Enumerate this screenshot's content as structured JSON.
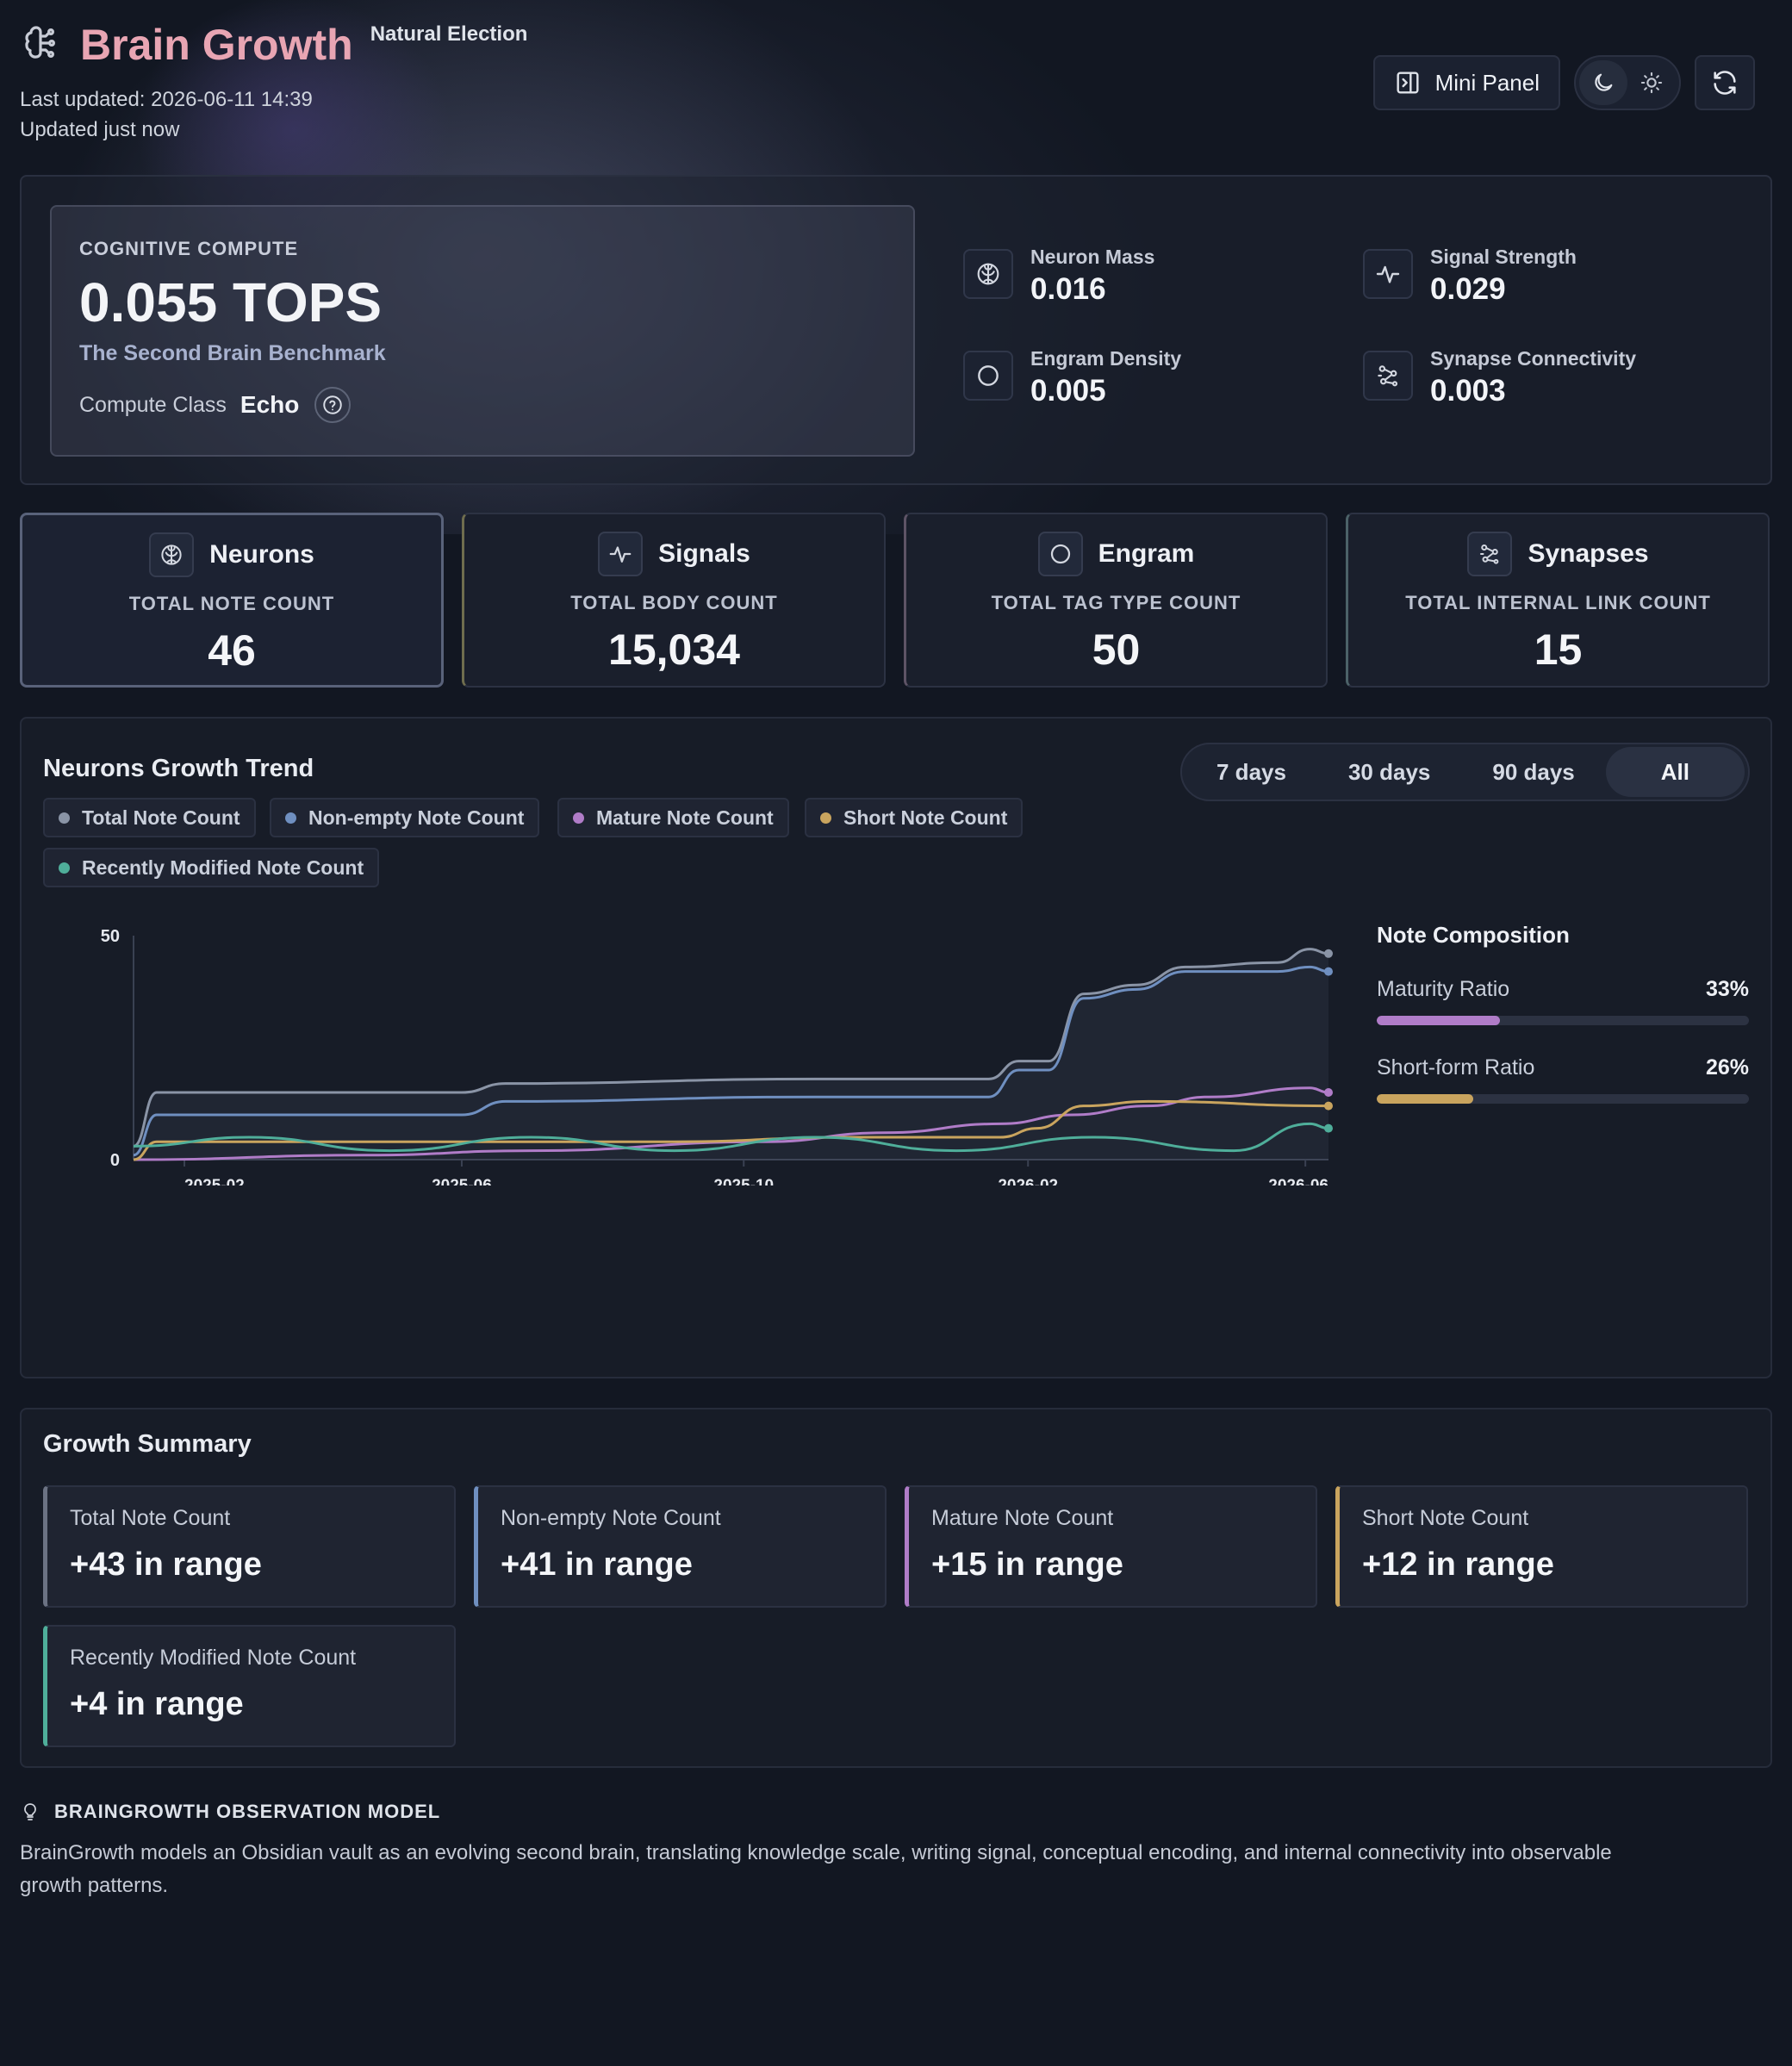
{
  "header": {
    "title": "Brain Growth",
    "subtitle": "Natural Election",
    "last_updated": "Last updated: 2026-06-11 14:39",
    "updated_relative": "Updated just now",
    "mini_panel_label": "Mini Panel",
    "icons": {
      "brand": "brain-icon",
      "mini_panel": "panel-right-icon",
      "dark": "moon-icon",
      "light": "sun-icon",
      "refresh": "refresh-icon"
    }
  },
  "compute": {
    "label": "COGNITIVE COMPUTE",
    "value": "0.055 TOPS",
    "benchmark": "The Second Brain Benchmark",
    "class_label": "Compute Class",
    "class_value": "Echo"
  },
  "metrics": [
    {
      "label": "Neuron Mass",
      "value": "0.016",
      "icon": "brain-icon"
    },
    {
      "label": "Signal Strength",
      "value": "0.029",
      "icon": "pulse-icon"
    },
    {
      "label": "Engram Density",
      "value": "0.005",
      "icon": "circle-icon"
    },
    {
      "label": "Synapse Connectivity",
      "value": "0.003",
      "icon": "network-icon"
    }
  ],
  "stats": [
    {
      "title": "Neurons",
      "subtitle": "TOTAL NOTE COUNT",
      "value": "46",
      "icon": "brain-icon",
      "accent": "#59627a"
    },
    {
      "title": "Signals",
      "subtitle": "TOTAL BODY COUNT",
      "value": "15,034",
      "icon": "pulse-icon",
      "accent": "#6f6d4e"
    },
    {
      "title": "Engram",
      "subtitle": "TOTAL TAG TYPE COUNT",
      "value": "50",
      "icon": "circle-icon",
      "accent": "#5e5466"
    },
    {
      "title": "Synapses",
      "subtitle": "TOTAL INTERNAL LINK COUNT",
      "value": "15",
      "icon": "network-icon",
      "accent": "#4c6268"
    }
  ],
  "trend": {
    "title": "Neurons Growth Trend",
    "ranges": [
      "7 days",
      "30 days",
      "90 days",
      "All"
    ],
    "active_range": "All",
    "legend": [
      {
        "name": "Total Note Count",
        "color": "#8a94a6"
      },
      {
        "name": "Non-empty Note Count",
        "color": "#6f8fc0"
      },
      {
        "name": "Mature Note Count",
        "color": "#b07cc8"
      },
      {
        "name": "Short Note Count",
        "color": "#c9a45e"
      },
      {
        "name": "Recently Modified Note Count",
        "color": "#4fae9a"
      }
    ]
  },
  "chart_data": {
    "type": "line",
    "x_ticks": [
      "2025-02",
      "2025-06",
      "2025-10",
      "2026-02",
      "2026-06"
    ],
    "y_ticks": [
      0,
      50
    ],
    "ylim": [
      0,
      50
    ],
    "xlim": [
      "2025-01-10",
      "2026-06-11"
    ],
    "series": [
      {
        "name": "Total Note Count",
        "color": "#8a94a6",
        "points": [
          [
            "2025-01-10",
            3
          ],
          [
            "2025-01-20",
            15
          ],
          [
            "2025-06-01",
            15
          ],
          [
            "2025-06-20",
            17
          ],
          [
            "2025-11-01",
            18
          ],
          [
            "2026-01-15",
            18
          ],
          [
            "2026-01-28",
            22
          ],
          [
            "2026-02-10",
            22
          ],
          [
            "2026-02-25",
            37
          ],
          [
            "2026-03-20",
            39
          ],
          [
            "2026-04-10",
            43
          ],
          [
            "2026-05-20",
            44
          ],
          [
            "2026-06-03",
            47
          ],
          [
            "2026-06-11",
            46
          ]
        ]
      },
      {
        "name": "Non-empty Note Count",
        "color": "#6f8fc0",
        "points": [
          [
            "2025-01-10",
            1
          ],
          [
            "2025-01-20",
            10
          ],
          [
            "2025-06-01",
            10
          ],
          [
            "2025-06-20",
            13
          ],
          [
            "2025-11-01",
            14
          ],
          [
            "2026-01-15",
            14
          ],
          [
            "2026-01-28",
            20
          ],
          [
            "2026-02-10",
            20
          ],
          [
            "2026-02-25",
            36
          ],
          [
            "2026-03-20",
            38
          ],
          [
            "2026-04-10",
            42
          ],
          [
            "2026-05-20",
            42
          ],
          [
            "2026-06-03",
            43
          ],
          [
            "2026-06-11",
            42
          ]
        ]
      },
      {
        "name": "Mature Note Count",
        "color": "#b07cc8",
        "points": [
          [
            "2025-01-10",
            0
          ],
          [
            "2025-04-20",
            1
          ],
          [
            "2025-07-01",
            2
          ],
          [
            "2025-10-10",
            4
          ],
          [
            "2025-12-01",
            6
          ],
          [
            "2026-01-20",
            8
          ],
          [
            "2026-02-20",
            10
          ],
          [
            "2026-03-25",
            12
          ],
          [
            "2026-04-20",
            14
          ],
          [
            "2026-06-03",
            16
          ],
          [
            "2026-06-11",
            15
          ]
        ]
      },
      {
        "name": "Short Note Count",
        "color": "#c9a45e",
        "points": [
          [
            "2025-01-10",
            0
          ],
          [
            "2025-01-20",
            4
          ],
          [
            "2025-09-01",
            4
          ],
          [
            "2025-11-15",
            5
          ],
          [
            "2026-01-20",
            5
          ],
          [
            "2026-02-05",
            7
          ],
          [
            "2026-02-25",
            12
          ],
          [
            "2026-03-25",
            13
          ],
          [
            "2026-06-11",
            12
          ]
        ]
      },
      {
        "name": "Recently Modified Note Count",
        "color": "#4fae9a",
        "points": [
          [
            "2025-01-10",
            3
          ],
          [
            "2025-03-01",
            5
          ],
          [
            "2025-05-01",
            2
          ],
          [
            "2025-07-01",
            5
          ],
          [
            "2025-09-01",
            2
          ],
          [
            "2025-11-01",
            5
          ],
          [
            "2026-01-01",
            2
          ],
          [
            "2026-03-01",
            5
          ],
          [
            "2026-05-01",
            2
          ],
          [
            "2026-06-03",
            8
          ],
          [
            "2026-06-11",
            7
          ]
        ]
      }
    ]
  },
  "composition": {
    "title": "Note Composition",
    "ratios": [
      {
        "label": "Maturity Ratio",
        "value": "33%",
        "fraction": 0.33,
        "color": "#b07cc8"
      },
      {
        "label": "Short-form Ratio",
        "value": "26%",
        "fraction": 0.26,
        "color": "#c9a45e"
      }
    ]
  },
  "summary": {
    "title": "Growth Summary",
    "items": [
      {
        "label": "Total Note Count",
        "value": "+43 in range",
        "color": "#6b7283"
      },
      {
        "label": "Non-empty Note Count",
        "value": "+41 in range",
        "color": "#6f8fc0"
      },
      {
        "label": "Mature Note Count",
        "value": "+15 in range",
        "color": "#b07cc8"
      },
      {
        "label": "Short Note Count",
        "value": "+12 in range",
        "color": "#c9a45e"
      },
      {
        "label": "Recently Modified Note Count",
        "value": "+4 in range",
        "color": "#4fae9a"
      }
    ]
  },
  "model": {
    "title": "BRAINGROWTH OBSERVATION MODEL",
    "text": "BrainGrowth models an Obsidian vault as an evolving second brain, translating knowledge scale, writing signal, conceptual encoding, and internal connectivity into observable growth patterns.",
    "icon": "lightbulb-icon"
  }
}
